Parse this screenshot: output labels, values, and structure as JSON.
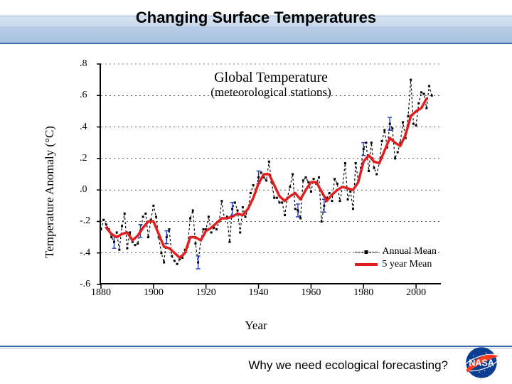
{
  "slide": {
    "title": "Changing Surface Temperatures",
    "footer": "Why we need ecological forecasting?"
  },
  "chart": {
    "type": "line",
    "title": "Global Temperature",
    "subtitle": "(meteorological stations)",
    "ylabel": "Temperature Anomaly (°C)",
    "xlabel": "Year",
    "background_color": "#ffffff",
    "grid_color": "#000000",
    "grid_dash": "2 4",
    "xlim": [
      1880,
      2010
    ],
    "ylim": [
      -0.6,
      0.8
    ],
    "xticks": [
      1880,
      1900,
      1920,
      1940,
      1960,
      1980,
      2000
    ],
    "yticks": [
      -0.6,
      -0.4,
      -0.2,
      0.0,
      0.2,
      0.4,
      0.6,
      0.8
    ],
    "ytick_labels": [
      "-.6",
      "-.4",
      "-.2",
      ".0",
      ".2",
      ".4",
      ".6",
      ".8"
    ],
    "legend": {
      "position": "lower-right",
      "items": [
        {
          "label": "Annual Mean",
          "style": "dashed-marker",
          "color": "#000000"
        },
        {
          "label": "5 year Mean",
          "style": "solid",
          "color": "#e02020",
          "width": 4
        }
      ]
    },
    "series_annual": {
      "label": "Annual Mean",
      "color": "#000000",
      "line_width": 1.2,
      "marker": "square",
      "marker_size": 3,
      "dash": "3 3",
      "error_bar_color": "#2040c0",
      "years": [
        1880,
        1881,
        1882,
        1883,
        1884,
        1885,
        1886,
        1887,
        1888,
        1889,
        1890,
        1891,
        1892,
        1893,
        1894,
        1895,
        1896,
        1897,
        1898,
        1899,
        1900,
        1901,
        1902,
        1903,
        1904,
        1905,
        1906,
        1907,
        1908,
        1909,
        1910,
        1911,
        1912,
        1913,
        1914,
        1915,
        1916,
        1917,
        1918,
        1919,
        1920,
        1921,
        1922,
        1923,
        1924,
        1925,
        1926,
        1927,
        1928,
        1929,
        1930,
        1931,
        1932,
        1933,
        1934,
        1935,
        1936,
        1937,
        1938,
        1939,
        1940,
        1941,
        1942,
        1943,
        1944,
        1945,
        1946,
        1947,
        1948,
        1949,
        1950,
        1951,
        1952,
        1953,
        1954,
        1955,
        1956,
        1957,
        1958,
        1959,
        1960,
        1961,
        1962,
        1963,
        1964,
        1965,
        1966,
        1967,
        1968,
        1969,
        1970,
        1971,
        1972,
        1973,
        1974,
        1975,
        1976,
        1977,
        1978,
        1979,
        1980,
        1981,
        1982,
        1983,
        1984,
        1985,
        1986,
        1987,
        1988,
        1989,
        1990,
        1991,
        1992,
        1993,
        1994,
        1995,
        1996,
        1997,
        1998,
        1999,
        2000,
        2001,
        2002,
        2003,
        2004,
        2005,
        2006
      ],
      "values": [
        -0.25,
        -0.19,
        -0.22,
        -0.25,
        -0.3,
        -0.33,
        -0.27,
        -0.38,
        -0.23,
        -0.15,
        -0.37,
        -0.27,
        -0.33,
        -0.35,
        -0.34,
        -0.26,
        -0.17,
        -0.15,
        -0.3,
        -0.19,
        -0.1,
        -0.17,
        -0.3,
        -0.4,
        -0.46,
        -0.3,
        -0.25,
        -0.42,
        -0.45,
        -0.47,
        -0.44,
        -0.43,
        -0.38,
        -0.36,
        -0.18,
        -0.13,
        -0.34,
        -0.46,
        -0.32,
        -0.25,
        -0.25,
        -0.17,
        -0.27,
        -0.24,
        -0.25,
        -0.2,
        -0.07,
        -0.18,
        -0.17,
        -0.33,
        -0.12,
        -0.08,
        -0.13,
        -0.27,
        -0.11,
        -0.17,
        -0.12,
        -0.02,
        0.03,
        -0.01,
        0.08,
        0.11,
        0.08,
        0.06,
        0.18,
        0.05,
        -0.05,
        -0.05,
        -0.08,
        -0.08,
        -0.16,
        -0.05,
        0.02,
        0.1,
        -0.12,
        -0.13,
        -0.18,
        0.06,
        0.08,
        0.05,
        -0.01,
        0.07,
        0.04,
        0.08,
        -0.2,
        -0.1,
        -0.05,
        -0.02,
        -0.07,
        0.07,
        0.04,
        -0.07,
        0.02,
        0.17,
        -0.06,
        -0.01,
        -0.12,
        0.17,
        0.06,
        0.14,
        0.26,
        0.3,
        0.12,
        0.3,
        0.14,
        0.1,
        0.17,
        0.31,
        0.38,
        0.27,
        0.42,
        0.39,
        0.2,
        0.24,
        0.3,
        0.43,
        0.33,
        0.47,
        0.7,
        0.42,
        0.41,
        0.55,
        0.62,
        0.61,
        0.52,
        0.66,
        0.6
      ]
    },
    "series_5yr": {
      "label": "5 year Mean",
      "color": "#e02020",
      "line_width": 3.5,
      "years": [
        1882,
        1884,
        1886,
        1888,
        1890,
        1892,
        1894,
        1896,
        1898,
        1900,
        1902,
        1904,
        1906,
        1908,
        1910,
        1912,
        1914,
        1916,
        1918,
        1920,
        1922,
        1924,
        1926,
        1928,
        1930,
        1932,
        1934,
        1936,
        1938,
        1940,
        1942,
        1944,
        1946,
        1948,
        1950,
        1952,
        1954,
        1956,
        1958,
        1960,
        1962,
        1964,
        1966,
        1968,
        1970,
        1972,
        1974,
        1976,
        1978,
        1980,
        1982,
        1984,
        1986,
        1988,
        1990,
        1992,
        1994,
        1996,
        1998,
        2000,
        2002,
        2004
      ],
      "values": [
        -0.24,
        -0.28,
        -0.3,
        -0.28,
        -0.27,
        -0.32,
        -0.29,
        -0.24,
        -0.2,
        -0.2,
        -0.28,
        -0.36,
        -0.37,
        -0.4,
        -0.43,
        -0.4,
        -0.3,
        -0.3,
        -0.32,
        -0.26,
        -0.24,
        -0.21,
        -0.18,
        -0.18,
        -0.17,
        -0.15,
        -0.16,
        -0.12,
        -0.05,
        0.04,
        0.1,
        0.1,
        0.03,
        -0.04,
        -0.07,
        -0.04,
        -0.02,
        -0.06,
        0.0,
        0.05,
        0.05,
        -0.01,
        -0.07,
        -0.03,
        0.0,
        0.02,
        0.01,
        0.0,
        0.05,
        0.18,
        0.22,
        0.18,
        0.17,
        0.25,
        0.33,
        0.3,
        0.28,
        0.35,
        0.47,
        0.5,
        0.52,
        0.58
      ]
    }
  },
  "colors": {
    "header_accent": "#3a6aa8",
    "nasa_blue": "#0b3d91",
    "nasa_red": "#fc3d21"
  }
}
